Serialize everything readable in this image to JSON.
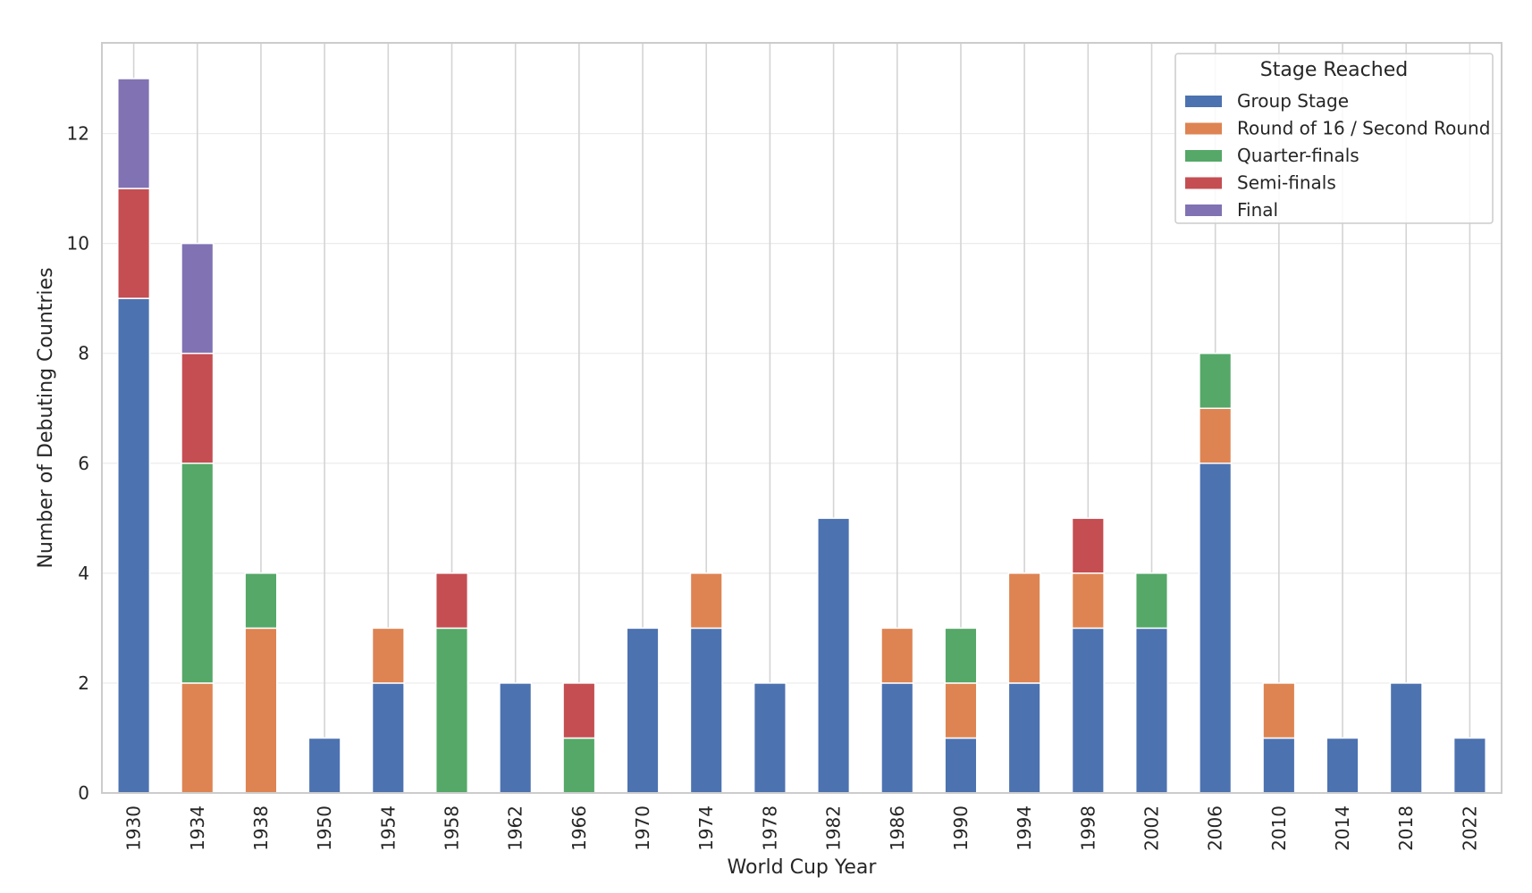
{
  "chart_data": {
    "type": "bar",
    "stacked": true,
    "title": "",
    "xlabel": "World Cup Year",
    "ylabel": "Number of Debuting Countries",
    "ylim": [
      0,
      13.65
    ],
    "yticks": [
      0,
      2,
      4,
      6,
      8,
      10,
      12
    ],
    "grid": true,
    "legend": {
      "title": "Stage Reached",
      "placement": "top-right"
    },
    "categories": [
      "1930",
      "1934",
      "1938",
      "1950",
      "1954",
      "1958",
      "1962",
      "1966",
      "1970",
      "1974",
      "1978",
      "1982",
      "1986",
      "1990",
      "1994",
      "1998",
      "2002",
      "2006",
      "2010",
      "2014",
      "2018",
      "2022"
    ],
    "series": [
      {
        "name": "Group Stage",
        "color": "#4c72b0",
        "values": [
          9,
          0,
          0,
          1,
          2,
          0,
          2,
          0,
          3,
          3,
          2,
          5,
          2,
          1,
          2,
          3,
          3,
          6,
          1,
          1,
          2,
          1
        ]
      },
      {
        "name": "Round of 16 / Second Round",
        "color": "#dd8452",
        "values": [
          0,
          2,
          3,
          0,
          1,
          0,
          0,
          0,
          0,
          1,
          0,
          0,
          1,
          1,
          2,
          1,
          0,
          1,
          1,
          0,
          0,
          0
        ]
      },
      {
        "name": "Quarter-finals",
        "color": "#55a868",
        "values": [
          0,
          4,
          1,
          0,
          0,
          3,
          0,
          1,
          0,
          0,
          0,
          0,
          0,
          1,
          0,
          0,
          1,
          1,
          0,
          0,
          0,
          0
        ]
      },
      {
        "name": "Semi-finals",
        "color": "#c44e52",
        "values": [
          2,
          2,
          0,
          0,
          0,
          1,
          0,
          1,
          0,
          0,
          0,
          0,
          0,
          0,
          0,
          1,
          0,
          0,
          0,
          0,
          0,
          0
        ]
      },
      {
        "name": "Final",
        "color": "#8172b3",
        "values": [
          2,
          2,
          0,
          0,
          0,
          0,
          0,
          0,
          0,
          0,
          0,
          0,
          0,
          0,
          0,
          0,
          0,
          0,
          0,
          0,
          0,
          0
        ]
      }
    ]
  }
}
